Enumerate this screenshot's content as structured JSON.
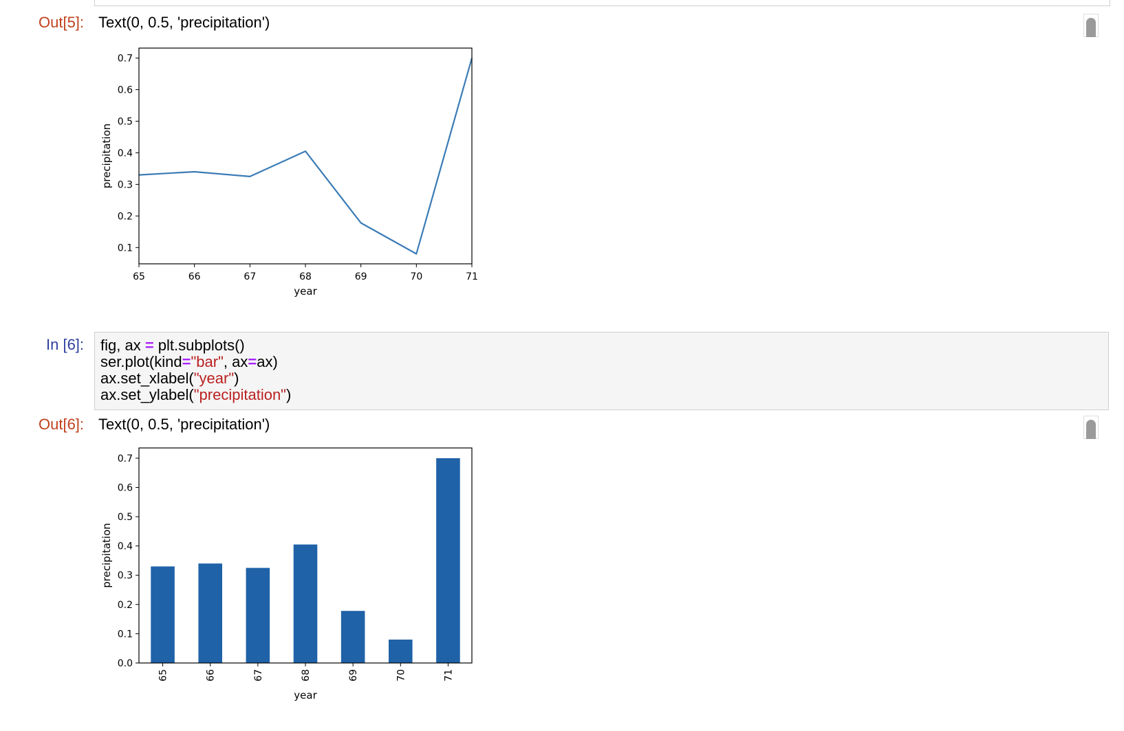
{
  "cells": [
    {
      "out_prompt": "Out[5]:",
      "out_text": "Text(0, 0.5, 'precipitation')"
    },
    {
      "in_prompt": "In [6]:",
      "code_lines": [
        [
          {
            "t": "fig, ax "
          },
          {
            "t": "=",
            "c": "eq"
          },
          {
            "t": " plt.subplots()"
          }
        ],
        [
          {
            "t": "ser.plot(kind"
          },
          {
            "t": "=",
            "c": "eq"
          },
          {
            "t": "\"bar\"",
            "c": "str"
          },
          {
            "t": ", ax"
          },
          {
            "t": "=",
            "c": "eq"
          },
          {
            "t": "ax)"
          }
        ],
        [
          {
            "t": "ax.set_xlabel("
          },
          {
            "t": "\"year\"",
            "c": "str"
          },
          {
            "t": ")"
          }
        ],
        [
          {
            "t": "ax.set_ylabel("
          },
          {
            "t": "\"precipitation\"",
            "c": "str"
          },
          {
            "t": ")"
          }
        ]
      ],
      "out_prompt": "Out[6]:",
      "out_text": "Text(0, 0.5, 'precipitation')"
    }
  ],
  "colors": {
    "line": "#3a7bb5",
    "bar": "#1f62a8",
    "out_prompt": "#c1411e",
    "in_prompt": "#303f9f"
  },
  "chart_data": [
    {
      "type": "line",
      "x": [
        65,
        66,
        67,
        68,
        69,
        70,
        71
      ],
      "values": [
        0.33,
        0.34,
        0.325,
        0.405,
        0.178,
        0.08,
        0.7
      ],
      "xlabel": "year",
      "ylabel": "precipitation",
      "xticks": [
        "65",
        "66",
        "67",
        "68",
        "69",
        "70",
        "71"
      ],
      "yticks": [
        "0.1",
        "0.2",
        "0.3",
        "0.4",
        "0.5",
        "0.6",
        "0.7"
      ],
      "ylim": [
        0.0485,
        0.7315
      ],
      "xlim": [
        65,
        71
      ]
    },
    {
      "type": "bar",
      "categories": [
        "65",
        "66",
        "67",
        "68",
        "69",
        "70",
        "71"
      ],
      "values": [
        0.33,
        0.34,
        0.325,
        0.405,
        0.178,
        0.08,
        0.7
      ],
      "xlabel": "year",
      "ylabel": "precipitation",
      "yticks": [
        "0.0",
        "0.1",
        "0.2",
        "0.3",
        "0.4",
        "0.5",
        "0.6",
        "0.7"
      ],
      "ylim": [
        0,
        0.735
      ]
    }
  ]
}
